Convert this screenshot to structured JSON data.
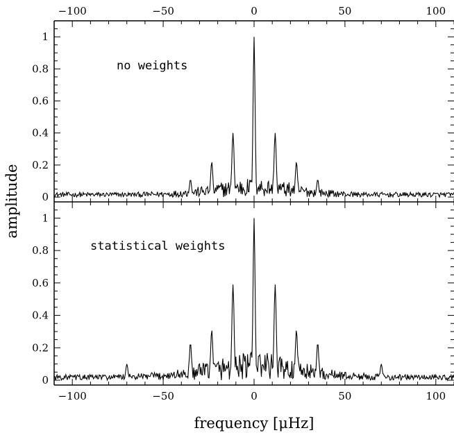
{
  "chart_data": [
    {
      "type": "line",
      "annotation": "no weights",
      "ylabel": "amplitude",
      "xlabel": "",
      "xlim": [
        -110,
        110
      ],
      "ylim": [
        -0.03,
        1.1
      ],
      "xticks": [
        -100,
        -50,
        0,
        50,
        100
      ],
      "yticks": [
        0,
        0.2,
        0.4,
        0.6,
        0.8,
        1
      ],
      "ytick_labels": [
        "0",
        "0.2",
        "0.4",
        "0.6",
        "0.8",
        "1"
      ],
      "top_axis_labels": true,
      "grid": false,
      "peaks": [
        {
          "x": -35,
          "y": 0.11
        },
        {
          "x": -23.3,
          "y": 0.22
        },
        {
          "x": -11.6,
          "y": 0.4
        },
        {
          "x": 0,
          "y": 1.0
        },
        {
          "x": 11.6,
          "y": 0.4
        },
        {
          "x": 23.3,
          "y": 0.22
        },
        {
          "x": 35,
          "y": 0.11
        }
      ],
      "noise_floor": 0.03
    },
    {
      "type": "line",
      "annotation": "statistical weights",
      "ylabel": "amplitude",
      "xlabel": "frequency [μHz]",
      "xlim": [
        -110,
        110
      ],
      "ylim": [
        -0.03,
        1.1
      ],
      "xticks": [
        -100,
        -50,
        0,
        50,
        100
      ],
      "yticks": [
        0,
        0.2,
        0.4,
        0.6,
        0.8,
        1
      ],
      "ytick_labels": [
        "0",
        "0.2",
        "0.4",
        "0.6",
        "0.8",
        "1"
      ],
      "grid": false,
      "peaks": [
        {
          "x": -70,
          "y": 0.1
        },
        {
          "x": -35,
          "y": 0.23
        },
        {
          "x": -23.3,
          "y": 0.31
        },
        {
          "x": -11.6,
          "y": 0.59
        },
        {
          "x": 0,
          "y": 1.0
        },
        {
          "x": 11.6,
          "y": 0.59
        },
        {
          "x": 23.3,
          "y": 0.31
        },
        {
          "x": 35,
          "y": 0.23
        },
        {
          "x": 70,
          "y": 0.1
        }
      ],
      "noise_floor": 0.035
    }
  ]
}
